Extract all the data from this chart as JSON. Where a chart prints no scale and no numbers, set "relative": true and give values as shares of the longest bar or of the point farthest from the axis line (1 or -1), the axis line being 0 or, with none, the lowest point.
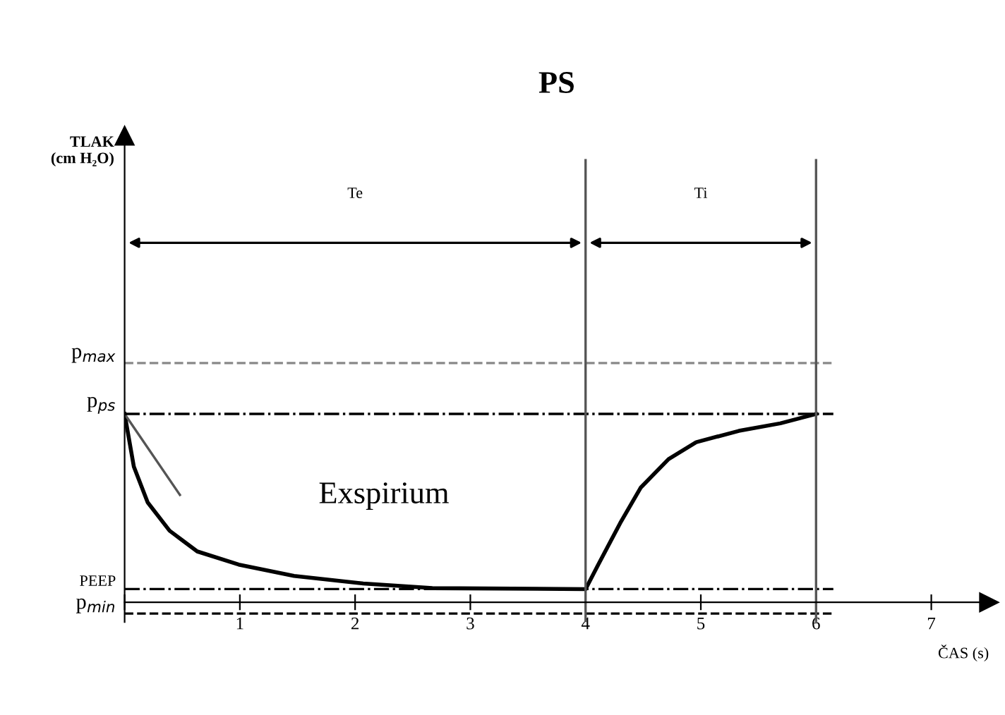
{
  "chart_data": {
    "type": "line",
    "title": "PS",
    "xlabel": "ČAS (s)",
    "relative": true,
    "xlim": [
      0,
      7.5
    ],
    "xticks": [
      {
        "value": 0,
        "label": null
      },
      1,
      2,
      3,
      4,
      5,
      6,
      7
    ],
    "series": [
      {
        "color": "#000000",
        "x": [
          0,
          0.08,
          0.2,
          0.39,
          0.63,
          0.99,
          1.47,
          2.07,
          2.67,
          4.0,
          4.11,
          4.3,
          4.48,
          4.72,
          4.96,
          5.33,
          5.69,
          6.0
        ],
        "values": [
          1.0,
          0.72,
          0.53,
          0.38,
          0.27,
          0.2,
          0.14,
          0.1,
          0.075,
          0.07,
          0.2,
          0.42,
          0.61,
          0.76,
          0.85,
          0.91,
          0.95,
          1.0
        ]
      },
      {
        "color": "#555555",
        "x": [
          0,
          0.48
        ],
        "values": [
          1.0,
          0.57
        ]
      }
    ],
    "ref_lines": [
      {
        "axis": "y",
        "value": 1.27,
        "label": "p$_{max}$",
        "color": "#888888",
        "line_style": "dashed"
      },
      {
        "axis": "y",
        "value": 1.0,
        "label": "p$_{ps}$",
        "color": "#000000",
        "line_style": "dashdot"
      },
      {
        "axis": "y",
        "value": 0.07,
        "label": "PEEP",
        "color": "#000000",
        "line_style": "dashdot"
      },
      {
        "axis": "y",
        "value": -0.06,
        "label": "p$_{min}$",
        "color": "#000000",
        "line_style": "dashed"
      },
      {
        "axis": "x",
        "value": 4,
        "color": "#555555",
        "line_style": "solid"
      },
      {
        "axis": "x",
        "value": 6,
        "color": "#555555",
        "line_style": "solid"
      }
    ],
    "annotations": [
      "Te",
      "Ti",
      "Exspirium",
      "TLAK\n(cm H₂O)"
    ],
    "grid": false,
    "legend": false,
    "marker": "none",
    "line_style": "solid"
  }
}
